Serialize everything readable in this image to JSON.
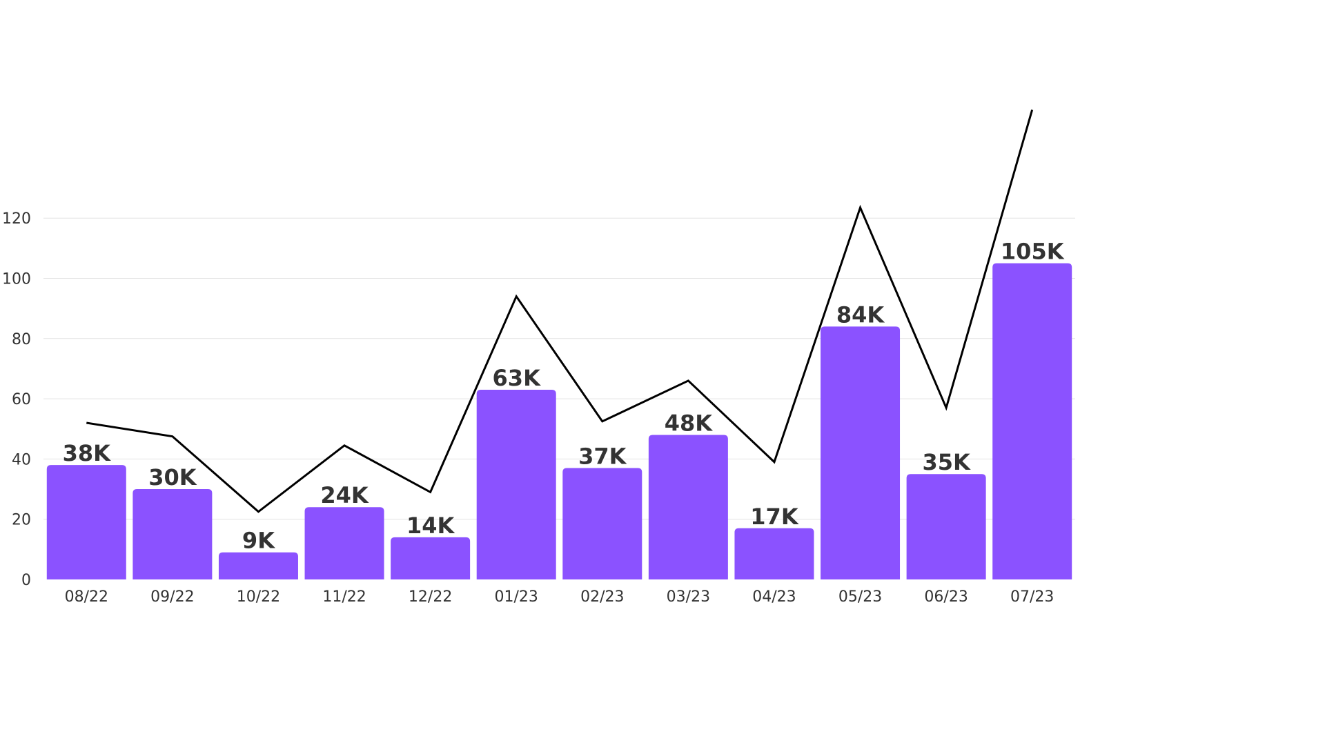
{
  "chart_data": {
    "type": "bar",
    "title": "",
    "xlabel": "",
    "ylabel": "",
    "categories": [
      "08/22",
      "09/22",
      "10/22",
      "11/22",
      "12/22",
      "01/23",
      "02/23",
      "03/23",
      "04/23",
      "05/23",
      "06/23",
      "07/23"
    ],
    "ylim": [
      0,
      120
    ],
    "yticks": [
      0,
      20,
      40,
      60,
      80,
      100,
      120
    ],
    "grid": true,
    "legend": "none",
    "series": [
      {
        "type": "bar",
        "color": "#8b52ff",
        "values": [
          38,
          30,
          9,
          24,
          14,
          63,
          37,
          48,
          17,
          84,
          35,
          105
        ],
        "data_labels": [
          "38K",
          "30K",
          "9K",
          "24K",
          "14K",
          "63K",
          "37K",
          "48K",
          "17K",
          "84K",
          "35K",
          "105K"
        ]
      },
      {
        "type": "line",
        "color": "#000000",
        "values": [
          52,
          47.5,
          22.5,
          44.5,
          29,
          94,
          52.5,
          66,
          39,
          123.5,
          57,
          156
        ]
      }
    ]
  }
}
